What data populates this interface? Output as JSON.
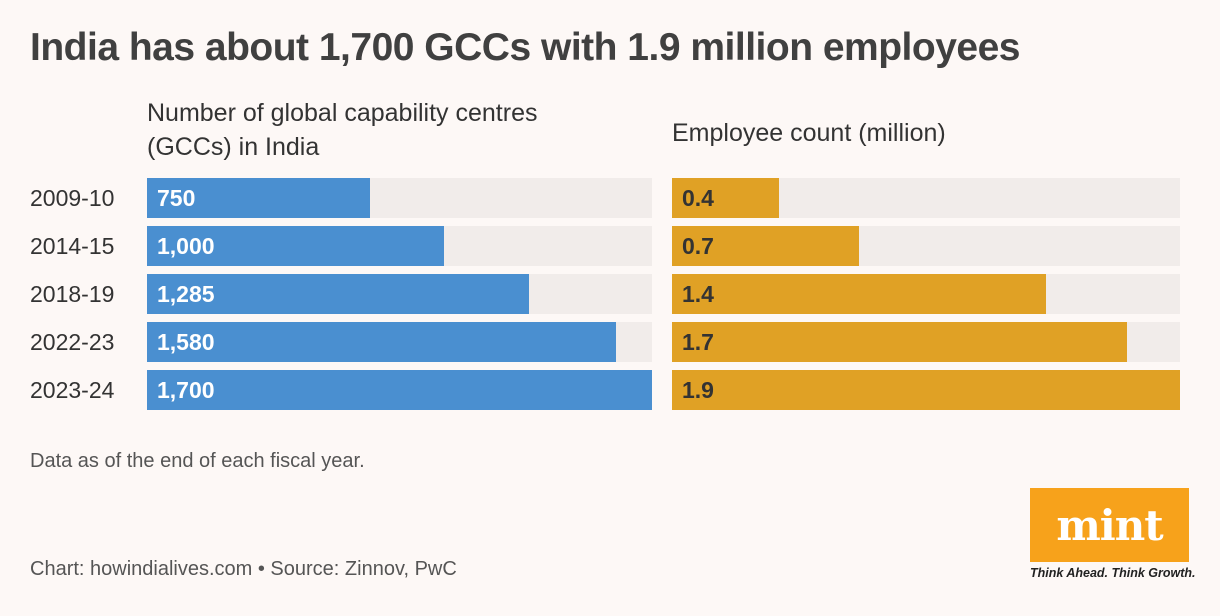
{
  "chart_data": [
    {
      "type": "bar",
      "orientation": "horizontal",
      "title": "India has about 1,700 GCCs with 1.9 million employees",
      "subtitle": "Number of global capability centres (GCCs) in India",
      "categories": [
        "2009-10",
        "2014-15",
        "2018-19",
        "2022-23",
        "2023-24"
      ],
      "values": [
        750,
        1000,
        1285,
        1580,
        1700
      ],
      "value_labels": [
        "750",
        "1,000",
        "1,285",
        "1,580",
        "1,700"
      ],
      "xlim": [
        0,
        1700
      ],
      "color": "#4a8fd0"
    },
    {
      "type": "bar",
      "orientation": "horizontal",
      "subtitle": "Employee count (million)",
      "categories": [
        "2009-10",
        "2014-15",
        "2018-19",
        "2022-23",
        "2023-24"
      ],
      "values": [
        0.4,
        0.7,
        1.4,
        1.7,
        1.9
      ],
      "value_labels": [
        "0.4",
        "0.7",
        "1.4",
        "1.7",
        "1.9"
      ],
      "xlim": [
        0,
        1.9
      ],
      "color": "#e0a125"
    }
  ],
  "title": "India has about 1,700 GCCs with 1.9 million employees",
  "left_subtitle": "Number of global capability centres (GCCs) in India",
  "right_subtitle": "Employee count (million)",
  "note": "Data as of the end of each fiscal year.",
  "credit": "Chart: howindialives.com • Source: Zinnov, PwC",
  "logo": {
    "text": "mint",
    "tagline": "Think Ahead. Think Growth.",
    "color": "#f7a21b"
  }
}
